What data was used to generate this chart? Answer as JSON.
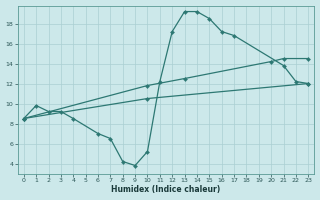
{
  "xlabel": "Humidex (Indice chaleur)",
  "bg_color": "#cce8ea",
  "grid_color": "#aacfd2",
  "line_color": "#2d7873",
  "xlim": [
    -0.5,
    23.5
  ],
  "ylim": [
    3.0,
    19.8
  ],
  "xticks": [
    0,
    1,
    2,
    3,
    4,
    5,
    6,
    7,
    8,
    9,
    10,
    11,
    12,
    13,
    14,
    15,
    16,
    17,
    18,
    19,
    20,
    21,
    22,
    23
  ],
  "yticks": [
    4,
    6,
    8,
    10,
    12,
    14,
    16,
    18
  ],
  "line1_x": [
    0,
    1,
    2,
    3,
    4,
    6,
    7,
    8,
    9,
    10,
    11,
    12,
    13,
    14,
    15,
    16,
    17,
    21,
    22,
    23
  ],
  "line1_y": [
    8.5,
    9.8,
    9.2,
    9.2,
    8.5,
    7.0,
    6.5,
    4.2,
    3.8,
    5.2,
    12.2,
    17.2,
    19.2,
    19.2,
    18.5,
    17.2,
    16.8,
    13.8,
    12.2,
    12.0
  ],
  "line2_x": [
    0,
    10,
    13,
    20,
    21,
    23
  ],
  "line2_y": [
    8.5,
    11.8,
    12.5,
    14.2,
    14.5,
    14.5
  ],
  "line3_x": [
    0,
    10,
    23
  ],
  "line3_y": [
    8.5,
    10.5,
    12.0
  ]
}
